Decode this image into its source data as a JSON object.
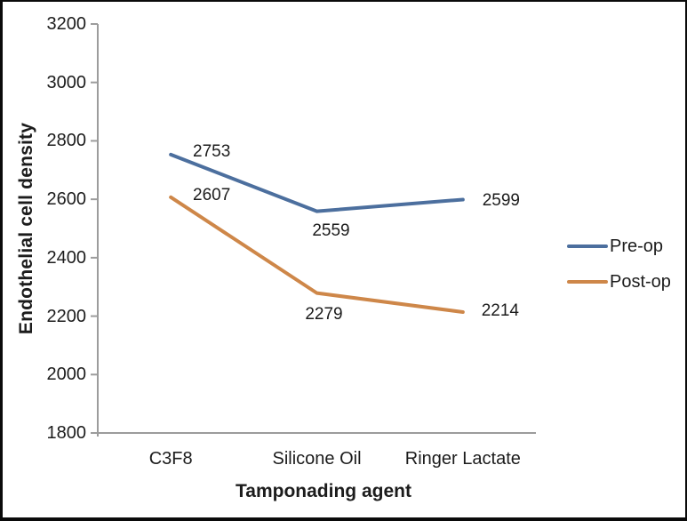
{
  "chart_data": {
    "type": "line",
    "title": "",
    "categories": [
      "C3F8",
      "Silicone Oil",
      "Ringer Lactate"
    ],
    "series": [
      {
        "name": "Pre-op",
        "color": "#4C6F9E",
        "values": [
          2753,
          2559,
          2599
        ]
      },
      {
        "name": "Post-op",
        "color": "#CE8749",
        "values": [
          2607,
          2279,
          2214
        ]
      }
    ],
    "xlabel": "Tamponading agent",
    "ylabel": "Endothelial cell density",
    "ylim": [
      1800,
      3200
    ],
    "yticks": [
      1800,
      2000,
      2200,
      2400,
      2600,
      2800,
      3000,
      3200
    ],
    "grid": false,
    "data_labels": true,
    "legend_position": "right",
    "axis_color": "#9C9C9C",
    "text_color": "#1C1C1C",
    "frame_color": "#0A0A0A"
  }
}
